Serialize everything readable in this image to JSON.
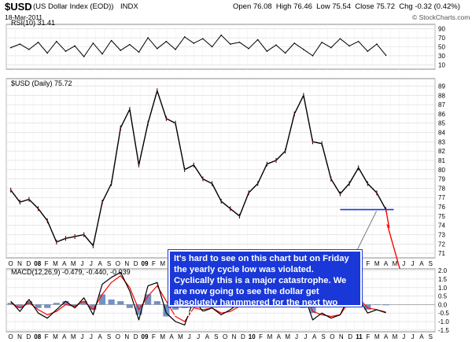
{
  "header": {
    "symbol": "$USD",
    "name": "(US Dollar Index (EOD))",
    "exchange": "INDX",
    "date": "18-Mar-2011",
    "quote": "Open 76.08  High 76.46  Low 75.54  Close 75.72  Chg -0.32 (0.42%)",
    "source": "© StockCharts.com"
  },
  "panels": {
    "rsi_label": "RSI(10) 31.41",
    "price_label": "$USD (Daily) 75.72",
    "macd_label": "MACD(12,26,9) -0.479, -0.440, -0.039"
  },
  "annotation": {
    "text": "It's hard to see on this chart but on Friday the yearly cycle low was violated. Cyclically this is a major catastrophe. We are now going to see the dollar get absolutely hanmmered for the next two months."
  },
  "chart_data": [
    {
      "type": "line",
      "panel": "price",
      "title": "$USD (Daily) 75.72",
      "x": [
        "Oct 2007",
        "Nov 2007",
        "Dec 2007",
        "Jan 2008",
        "Feb 2008",
        "Mar 2008",
        "Apr 2008",
        "May 2008",
        "Jun 2008",
        "Jul 2008",
        "Aug 2008",
        "Sep 2008",
        "Oct 2008",
        "Nov 2008",
        "Dec 2008",
        "Jan 2009",
        "Feb 2009",
        "Mar 2009",
        "Apr 2009",
        "May 2009",
        "Jun 2009",
        "Jul 2009",
        "Aug 2009",
        "Sep 2009",
        "Oct 2009",
        "Nov 2009",
        "Dec 2009",
        "Jan 2010",
        "Feb 2010",
        "Mar 2010",
        "Apr 2010",
        "May 2010",
        "Jun 2010",
        "Jul 2010",
        "Aug 2010",
        "Sep 2010",
        "Oct 2010",
        "Nov 2010",
        "Dec 2010",
        "Jan 2011",
        "Feb 2011",
        "Mar 2011"
      ],
      "values": [
        77.8,
        76.5,
        76.8,
        75.8,
        74.5,
        72.2,
        72.6,
        72.8,
        73.0,
        71.8,
        76.5,
        78.5,
        84.5,
        86.5,
        80.5,
        85.0,
        88.5,
        85.5,
        85.0,
        80.0,
        80.5,
        79.0,
        78.5,
        76.6,
        75.8,
        75.0,
        77.5,
        78.5,
        80.6,
        81.0,
        82.0,
        86.0,
        88.0,
        83.0,
        82.8,
        79.0,
        77.4,
        78.5,
        80.2,
        78.5,
        77.5,
        75.7
      ],
      "ylim": [
        70.5,
        89.8
      ],
      "y_ticks": [
        71,
        72,
        73,
        74,
        75,
        76,
        77,
        78,
        79,
        80,
        81,
        82,
        83,
        84,
        85,
        86,
        87,
        88,
        89
      ],
      "x_ticks": [
        "O",
        "N",
        "D",
        "08",
        "F",
        "M",
        "A",
        "M",
        "J",
        "J",
        "A",
        "S",
        "O",
        "N",
        "D",
        "09",
        "F",
        "M",
        "A",
        "M",
        "J",
        "J",
        "A",
        "S",
        "O",
        "N",
        "D",
        "10",
        "F",
        "M",
        "A",
        "M",
        "J",
        "J",
        "A",
        "S",
        "O",
        "N",
        "D",
        "11",
        "F",
        "M",
        "A",
        "M",
        "J",
        "J",
        "A",
        "S"
      ],
      "annotations": [
        {
          "type": "horizontal_line",
          "value": 75.7,
          "x_from": "Oct 2010",
          "x_to": "Mar 2011",
          "color": "#1a38d8"
        },
        {
          "type": "projection_arrow",
          "from": 75.7,
          "to": 70.5,
          "color": "#ff0000"
        }
      ],
      "grid": true
    },
    {
      "type": "line",
      "panel": "rsi",
      "title": "RSI(10) 31.41",
      "values": [
        48,
        56,
        44,
        60,
        36,
        62,
        40,
        52,
        28,
        58,
        34,
        64,
        42,
        55,
        38,
        70,
        46,
        62,
        44,
        72,
        58,
        68,
        50,
        76,
        56,
        60,
        46,
        66,
        40,
        54,
        36,
        58,
        44,
        30,
        60,
        48,
        68,
        52,
        62,
        40,
        56,
        31
      ],
      "ylim": [
        0,
        100
      ],
      "y_ticks": [
        10,
        30,
        50,
        70,
        90
      ],
      "grid": true
    },
    {
      "type": "line",
      "panel": "macd",
      "title": "MACD(12,26,9) -0.479, -0.440, -0.039",
      "series": [
        {
          "name": "MACD",
          "color": "#000000",
          "values": [
            0.2,
            -0.4,
            0.3,
            -0.5,
            -0.8,
            -0.3,
            0.2,
            -0.2,
            0.4,
            -0.6,
            1.2,
            1.6,
            1.9,
            0.8,
            -0.9,
            1.1,
            1.3,
            -0.5,
            -1.0,
            -1.2,
            0.3,
            -0.4,
            -0.2,
            -0.6,
            -0.3,
            0.1,
            0.9,
            0.8,
            0.5,
            0.3,
            0.7,
            1.4,
            0.7,
            -0.9,
            -0.5,
            -0.8,
            -0.6,
            0.5,
            0.4,
            -0.5,
            -0.3,
            -0.48
          ]
        },
        {
          "name": "Signal",
          "color": "#ff0000",
          "values": [
            0.1,
            -0.2,
            0.1,
            -0.3,
            -0.6,
            -0.4,
            0.0,
            -0.1,
            0.2,
            -0.3,
            0.6,
            1.3,
            1.7,
            1.0,
            -0.3,
            0.5,
            1.1,
            0.2,
            -0.7,
            -1.0,
            -0.2,
            -0.3,
            -0.2,
            -0.5,
            -0.4,
            -0.1,
            0.6,
            0.8,
            0.6,
            0.4,
            0.5,
            1.1,
            0.9,
            -0.4,
            -0.6,
            -0.7,
            -0.6,
            0.2,
            0.4,
            -0.2,
            -0.3,
            -0.44
          ]
        },
        {
          "name": "Histogram",
          "color": "#5b7fb8",
          "values": [
            0.1,
            -0.2,
            0.2,
            -0.2,
            -0.2,
            0.1,
            0.2,
            -0.1,
            0.2,
            -0.3,
            0.6,
            0.3,
            0.2,
            -0.2,
            -0.6,
            0.6,
            0.2,
            -0.7,
            -0.3,
            -0.2,
            0.5,
            -0.1,
            0.0,
            -0.1,
            0.1,
            0.2,
            0.3,
            0.0,
            -0.1,
            -0.1,
            0.2,
            0.3,
            -0.2,
            -0.5,
            0.1,
            -0.1,
            0.0,
            0.3,
            0.0,
            -0.3,
            0.0,
            -0.04
          ]
        }
      ],
      "ylim": [
        -1.6,
        2.1
      ],
      "y_ticks": [
        -1.5,
        -1.0,
        -0.5,
        0.0,
        0.5,
        1.0,
        1.5,
        2.0
      ],
      "grid": true
    }
  ]
}
